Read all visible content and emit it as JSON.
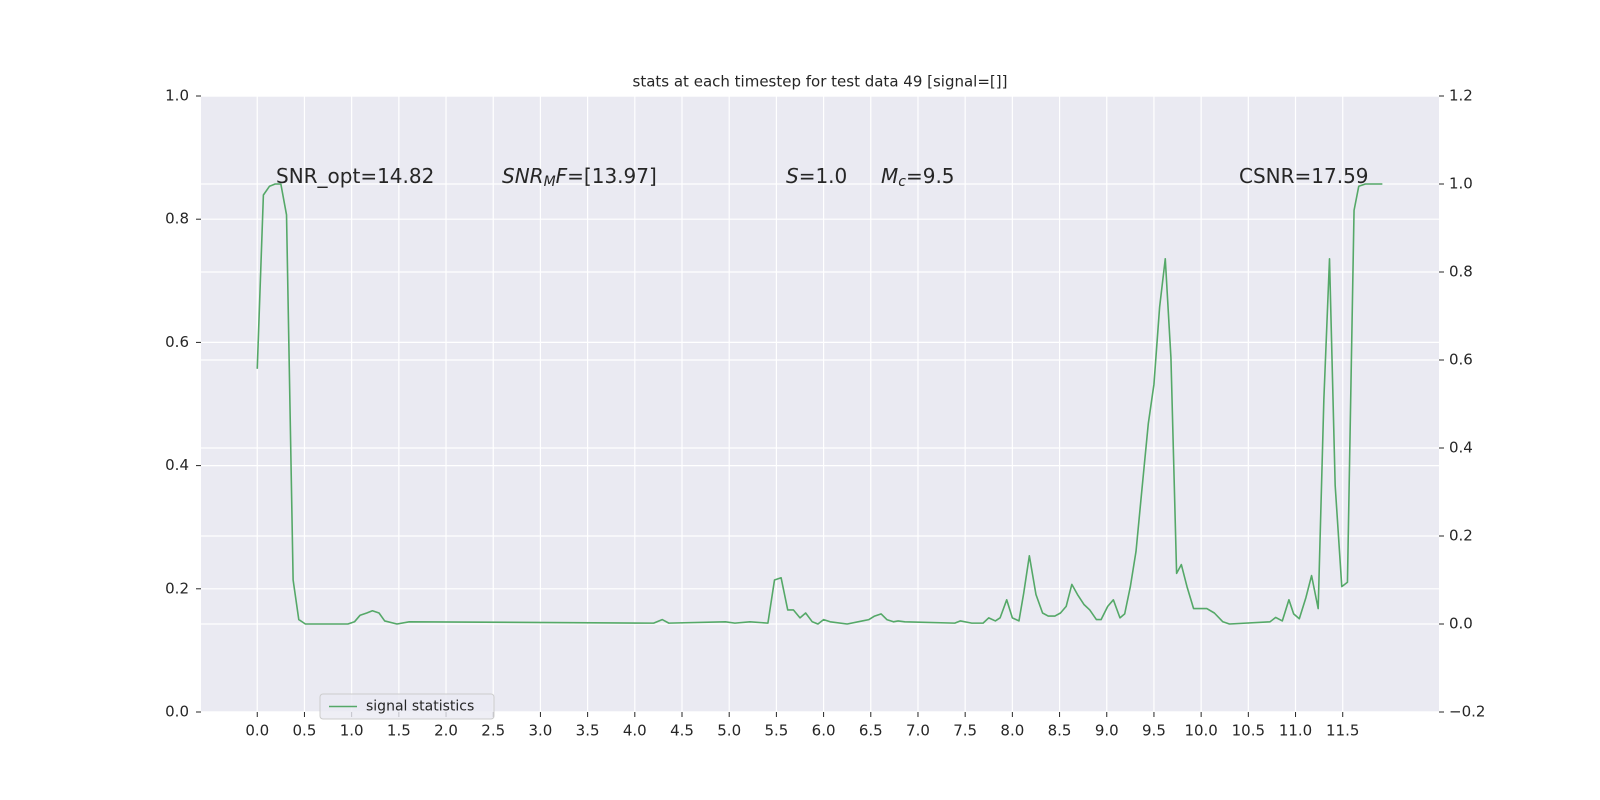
{
  "chart_data": {
    "type": "line",
    "title": "stats at each timestep for test data 49 [signal=[]]",
    "x": [
      0,
      0.065,
      0.13,
      0.19,
      0.25,
      0.31,
      0.38,
      0.44,
      0.51,
      0.96,
      1.03,
      1.09,
      1.16,
      1.22,
      1.29,
      1.35,
      1.48,
      1.61,
      4.2,
      4.29,
      4.36,
      4.96,
      5.06,
      5.22,
      5.41,
      5.48,
      5.55,
      5.62,
      5.68,
      5.75,
      5.81,
      5.88,
      5.94,
      6.0,
      6.07,
      6.25,
      6.41,
      6.48,
      6.54,
      6.61,
      6.67,
      6.74,
      6.79,
      6.86,
      7.39,
      7.45,
      7.57,
      7.69,
      7.75,
      7.82,
      7.87,
      7.94,
      8.0,
      8.07,
      8.12,
      8.18,
      8.25,
      8.32,
      8.38,
      8.45,
      8.51,
      8.57,
      8.63,
      8.69,
      8.76,
      8.82,
      8.89,
      8.94,
      9.01,
      9.07,
      9.14,
      9.19,
      9.25,
      9.31,
      9.37,
      9.44,
      9.5,
      9.56,
      9.62,
      9.68,
      9.74,
      9.79,
      9.85,
      9.92,
      10.06,
      10.14,
      10.23,
      10.3,
      10.73,
      10.79,
      10.86,
      10.93,
      10.98,
      11.04,
      11.11,
      11.17,
      11.24,
      11.3,
      11.36,
      11.42,
      11.49,
      11.55,
      11.62,
      11.67,
      11.74,
      11.92
    ],
    "series": [
      {
        "name": "signal statistics",
        "color": "#55a868",
        "axis": "y2",
        "values": [
          0.58,
          0.975,
          0.995,
          1.0,
          1.0,
          0.93,
          0.1,
          0.01,
          0.0,
          0.0,
          0.005,
          0.02,
          0.025,
          0.03,
          0.025,
          0.007,
          0.0,
          0.005,
          0.002,
          0.01,
          0.002,
          0.005,
          0.002,
          0.005,
          0.002,
          0.1,
          0.105,
          0.032,
          0.032,
          0.014,
          0.025,
          0.005,
          0.0,
          0.01,
          0.005,
          0.0,
          0.007,
          0.01,
          0.018,
          0.023,
          0.01,
          0.005,
          0.007,
          0.005,
          0.002,
          0.007,
          0.002,
          0.002,
          0.014,
          0.007,
          0.014,
          0.055,
          0.014,
          0.007,
          0.07,
          0.155,
          0.067,
          0.025,
          0.018,
          0.018,
          0.025,
          0.04,
          0.09,
          0.067,
          0.044,
          0.032,
          0.01,
          0.01,
          0.04,
          0.055,
          0.014,
          0.023,
          0.085,
          0.165,
          0.3,
          0.455,
          0.545,
          0.72,
          0.83,
          0.605,
          0.115,
          0.135,
          0.085,
          0.035,
          0.035,
          0.025,
          0.005,
          0.0,
          0.005,
          0.015,
          0.007,
          0.055,
          0.023,
          0.012,
          0.06,
          0.11,
          0.035,
          0.51,
          0.83,
          0.315,
          0.085,
          0.095,
          0.94,
          0.995,
          1.0,
          1.0
        ]
      }
    ],
    "xlim": [
      -0.596,
      12.52
    ],
    "xticks": [
      {
        "value": 0,
        "label": "0.0"
      },
      {
        "value": 0.5,
        "label": "0.5"
      },
      {
        "value": 1,
        "label": "1.0"
      },
      {
        "value": 1.5,
        "label": "1.5"
      },
      {
        "value": 2,
        "label": "2.0"
      },
      {
        "value": 2.5,
        "label": "2.5"
      },
      {
        "value": 3,
        "label": "3.0"
      },
      {
        "value": 3.5,
        "label": "3.5"
      },
      {
        "value": 4,
        "label": "4.0"
      },
      {
        "value": 4.5,
        "label": "4.5"
      },
      {
        "value": 5,
        "label": "5.0"
      },
      {
        "value": 5.5,
        "label": "5.5"
      },
      {
        "value": 6,
        "label": "6.0"
      },
      {
        "value": 6.5,
        "label": "6.5"
      },
      {
        "value": 7,
        "label": "7.0"
      },
      {
        "value": 7.5,
        "label": "7.5"
      },
      {
        "value": 8,
        "label": "8.0"
      },
      {
        "value": 8.5,
        "label": "8.5"
      },
      {
        "value": 9,
        "label": "9.0"
      },
      {
        "value": 9.5,
        "label": "9.5"
      },
      {
        "value": 10,
        "label": "10.0"
      },
      {
        "value": 10.5,
        "label": "10.5"
      },
      {
        "value": 11,
        "label": "11.0"
      },
      {
        "value": 11.5,
        "label": "11.5"
      }
    ],
    "ylim": [
      0,
      1
    ],
    "yticks": [
      {
        "value": 0,
        "label": "0.0"
      },
      0.2,
      0.4,
      0.6,
      0.8,
      {
        "value": 1,
        "label": "1.0"
      }
    ],
    "y2lim": [
      -0.2,
      1.2
    ],
    "y2ticks": [
      {
        "value": -0.2,
        "label": "−0.2"
      },
      {
        "value": 0,
        "label": "0.0"
      },
      0.2,
      0.4,
      0.6,
      0.8,
      {
        "value": 1,
        "label": "1.0"
      },
      1.2
    ],
    "grid": true,
    "legend": "lower left",
    "annotations": [
      [
        {
          "text": "SNR_opt=14.82"
        }
      ],
      [
        {
          "text": "SNR",
          "italic": true
        },
        {
          "text": "M",
          "italic": true,
          "sub": true
        },
        {
          "text": "F",
          "italic": true
        },
        {
          "text": "=[13.97]"
        }
      ],
      [
        {
          "text": "S",
          "italic": true
        },
        {
          "text": "=1.0"
        }
      ],
      [
        {
          "text": "M",
          "italic": true
        },
        {
          "text": "c",
          "italic": true,
          "sub": true
        },
        {
          "text": "=9.5"
        }
      ],
      [
        {
          "text": "CSNR=17.59"
        }
      ]
    ]
  }
}
